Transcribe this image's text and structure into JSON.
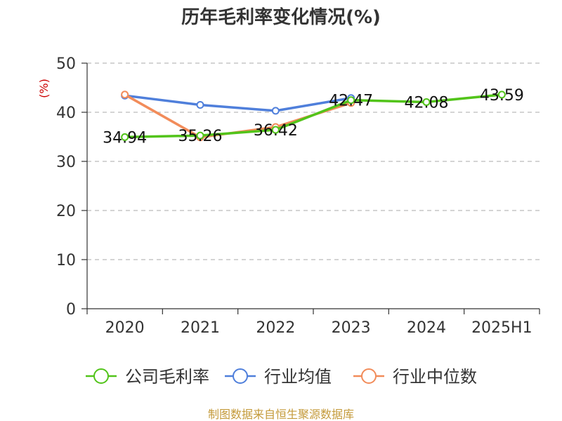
{
  "chart_data": {
    "type": "line",
    "title": "历年毛利率变化情况(%)",
    "ylabel": "(%)",
    "categories": [
      "2020",
      "2021",
      "2022",
      "2023",
      "2024",
      "2025H1"
    ],
    "ylim": [
      0,
      50
    ],
    "yticks": [
      0,
      10,
      20,
      30,
      40,
      50
    ],
    "grid": "horizontal dashed",
    "legend_position": "bottom",
    "series": [
      {
        "name": "公司毛利率",
        "color": "#52c41a",
        "values": [
          34.94,
          35.26,
          36.42,
          42.47,
          42.08,
          43.59
        ],
        "labels": [
          "34.94",
          "35.26",
          "36.42",
          "42.47",
          "42.08",
          "43.59"
        ]
      },
      {
        "name": "行业均值",
        "color": "#4f7fdb",
        "values": [
          43.4,
          41.5,
          40.3,
          42.9,
          null,
          null
        ]
      },
      {
        "name": "行业中位数",
        "color": "#f28c5a",
        "values": [
          43.6,
          34.9,
          37.0,
          41.9,
          null,
          null
        ]
      }
    ],
    "source": "制图数据来自恒生聚源数据库"
  },
  "colors": {
    "title": "#333333",
    "axis": "#333333",
    "grid": "#bbbbbb",
    "ylabel": "#cc0000",
    "source": "#c49a3a"
  }
}
